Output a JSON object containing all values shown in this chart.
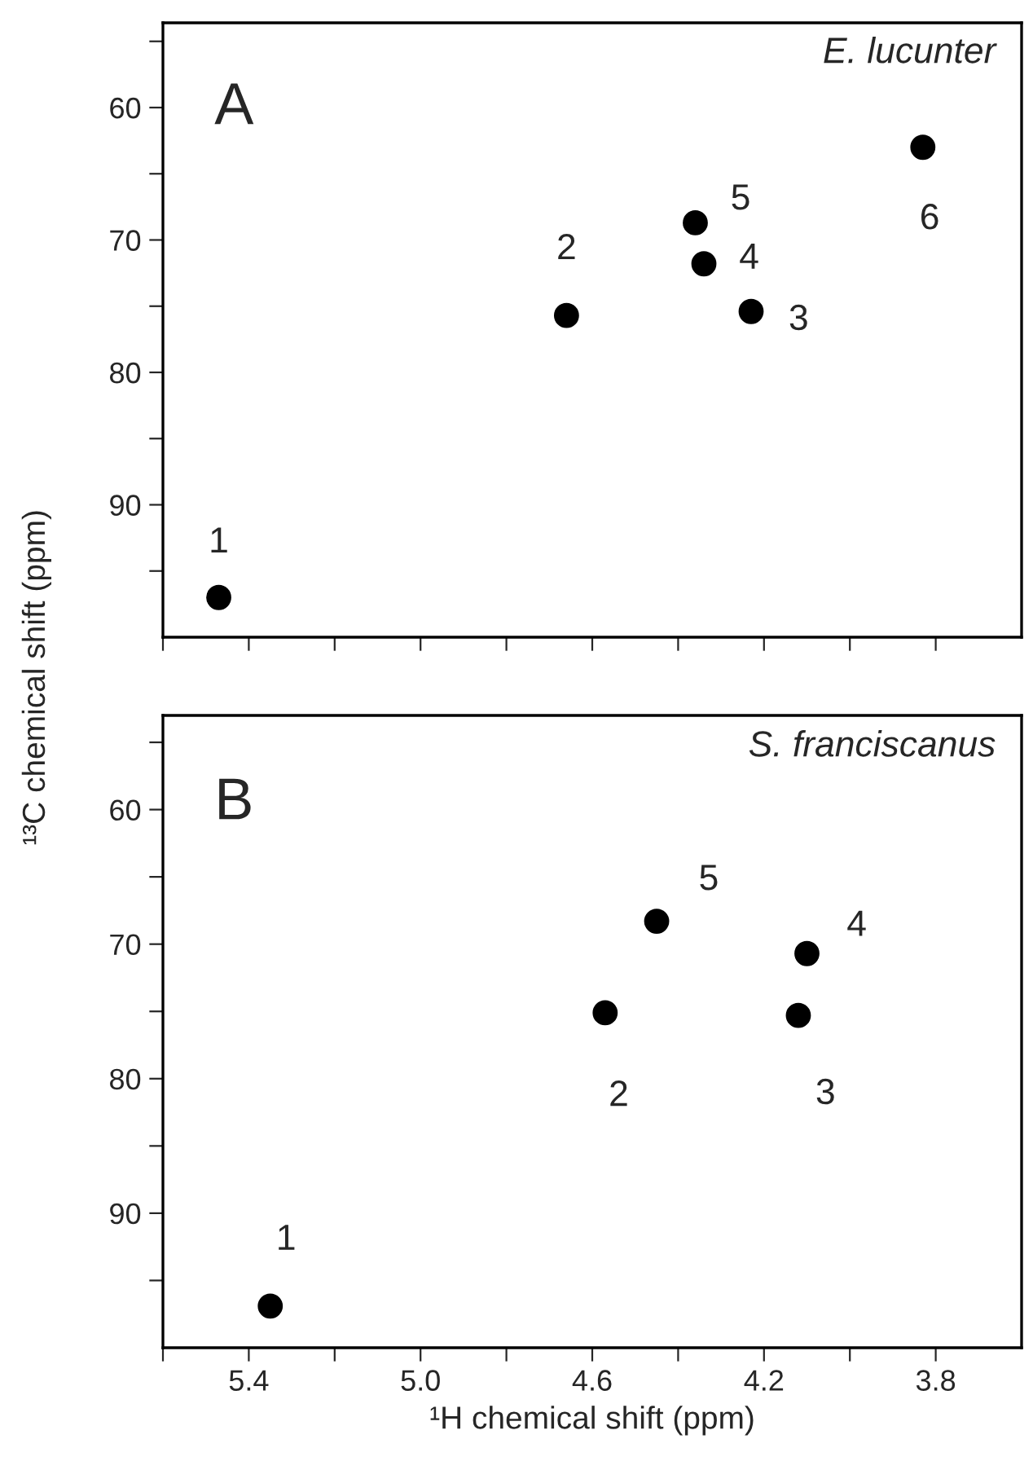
{
  "chart_data": [
    {
      "type": "scatter",
      "tick_labels": "y",
      "marker": "circle",
      "grid": false,
      "series": [
        {
          "name": "1",
          "color": "#000000",
          "x": [
            5.47
          ],
          "values": [
            97
          ]
        },
        {
          "name": "2",
          "color": "#000000",
          "x": [
            4.66
          ],
          "values": [
            75.7
          ]
        },
        {
          "name": "3",
          "color": "#000000",
          "x": [
            4.23
          ],
          "values": [
            75.4
          ]
        },
        {
          "name": "4",
          "color": "#000000",
          "x": [
            4.34
          ],
          "values": [
            71.8
          ]
        },
        {
          "name": "5",
          "color": "#000000",
          "x": [
            4.36
          ],
          "values": [
            68.7
          ]
        },
        {
          "name": "6",
          "color": "#000000",
          "x": [
            3.83
          ],
          "values": [
            63
          ]
        }
      ],
      "xlim": [
        5.6,
        3.6
      ],
      "ylim": [
        100,
        53.6
      ],
      "xticks": [
        {
          "value": 5.6,
          "label": null
        },
        {
          "value": 5.4,
          "label": null
        },
        {
          "value": 5.2,
          "label": null
        },
        {
          "value": 5.0,
          "label": null
        },
        {
          "value": 4.8,
          "label": null
        },
        {
          "value": 4.6,
          "label": null
        },
        {
          "value": 4.4,
          "label": null
        },
        {
          "value": 4.2,
          "label": null
        },
        {
          "value": 4.0,
          "label": null
        },
        {
          "value": 3.8,
          "label": null
        }
      ],
      "yticks": [
        {
          "value": 55,
          "label": null
        },
        60,
        {
          "value": 65,
          "label": null
        },
        70,
        {
          "value": 75,
          "label": null
        },
        80,
        {
          "value": 85,
          "label": null
        },
        90,
        {
          "value": 95,
          "label": null
        }
      ],
      "annotations": [
        "A",
        "E. lucunter"
      ]
    },
    {
      "type": "scatter",
      "marker": "circle",
      "grid": false,
      "xlabel": "¹H chemical shift (ppm)",
      "ylabel": "¹³C chemical shift (ppm)",
      "series": [
        {
          "name": "1",
          "color": "#000000",
          "x": [
            5.35
          ],
          "values": [
            96.9
          ]
        },
        {
          "name": "2",
          "color": "#000000",
          "x": [
            4.57
          ],
          "values": [
            75.1
          ]
        },
        {
          "name": "3",
          "color": "#000000",
          "x": [
            4.12
          ],
          "values": [
            75.3
          ]
        },
        {
          "name": "4",
          "color": "#000000",
          "x": [
            4.1
          ],
          "values": [
            70.7
          ]
        },
        {
          "name": "5",
          "color": "#000000",
          "x": [
            4.45
          ],
          "values": [
            68.3
          ]
        }
      ],
      "xlim": [
        5.6,
        3.6
      ],
      "ylim": [
        100,
        53
      ],
      "xticks": [
        {
          "value": 5.6,
          "label": null
        },
        5.4,
        {
          "value": 5.2,
          "label": null
        },
        {
          "value": 5.0,
          "label": "5.0"
        },
        {
          "value": 4.8,
          "label": null
        },
        4.6,
        {
          "value": 4.4,
          "label": null
        },
        4.2,
        {
          "value": 4.0,
          "label": null
        },
        3.8
      ],
      "yticks": [
        {
          "value": 55,
          "label": null
        },
        60,
        {
          "value": 65,
          "label": null
        },
        70,
        {
          "value": 75,
          "label": null
        },
        80,
        {
          "value": 85,
          "label": null
        },
        90,
        {
          "value": 95,
          "label": null
        }
      ],
      "annotations": [
        "B",
        "S. franciscanus"
      ]
    }
  ]
}
